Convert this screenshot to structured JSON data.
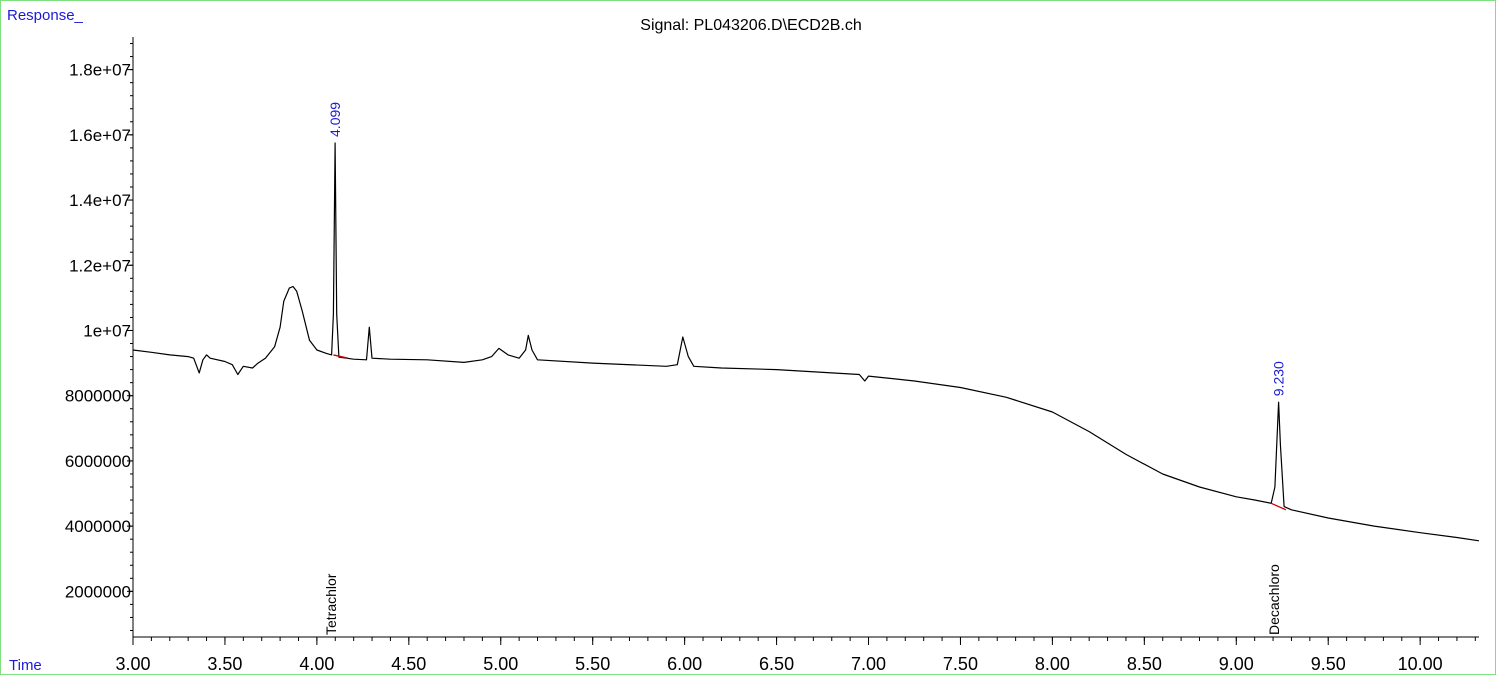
{
  "chart_data": {
    "type": "line",
    "title": "Signal: PL043206.D\\ECD2B.ch",
    "xlabel": "Time",
    "ylabel": "Response_",
    "xlim": [
      3.0,
      10.32
    ],
    "ylim": [
      600000,
      19000000
    ],
    "x_ticks": [
      3.0,
      3.5,
      4.0,
      4.5,
      5.0,
      5.5,
      6.0,
      6.5,
      7.0,
      7.5,
      8.0,
      8.5,
      9.0,
      9.5,
      10.0
    ],
    "x_tick_labels": [
      "3.00",
      "3.50",
      "4.00",
      "4.50",
      "5.00",
      "5.50",
      "6.00",
      "6.50",
      "7.00",
      "7.50",
      "8.00",
      "8.50",
      "9.00",
      "9.50",
      "10.00"
    ],
    "y_ticks": [
      2000000,
      4000000,
      6000000,
      8000000,
      10000000,
      12000000,
      14000000,
      16000000,
      18000000
    ],
    "y_tick_labels": [
      "2000000",
      "4000000",
      "6000000",
      "8000000",
      "1e+07",
      "1.2e+07",
      "1.4e+07",
      "1.6e+07",
      "1.8e+07"
    ],
    "grid": false,
    "series": [
      {
        "color": "#000000",
        "points": [
          [
            3.0,
            9400000
          ],
          [
            3.1,
            9330000
          ],
          [
            3.2,
            9250000
          ],
          [
            3.3,
            9200000
          ],
          [
            3.33,
            9150000
          ],
          [
            3.36,
            8700000
          ],
          [
            3.38,
            9100000
          ],
          [
            3.4,
            9250000
          ],
          [
            3.42,
            9150000
          ],
          [
            3.5,
            9050000
          ],
          [
            3.54,
            8950000
          ],
          [
            3.57,
            8650000
          ],
          [
            3.6,
            8900000
          ],
          [
            3.65,
            8850000
          ],
          [
            3.68,
            9000000
          ],
          [
            3.72,
            9150000
          ],
          [
            3.77,
            9500000
          ],
          [
            3.8,
            10100000
          ],
          [
            3.82,
            10900000
          ],
          [
            3.85,
            11300000
          ],
          [
            3.87,
            11350000
          ],
          [
            3.89,
            11200000
          ],
          [
            3.92,
            10600000
          ],
          [
            3.96,
            9700000
          ],
          [
            4.0,
            9400000
          ],
          [
            4.05,
            9300000
          ],
          [
            4.08,
            9250000
          ],
          [
            4.09,
            10500000
          ],
          [
            4.099,
            15750000
          ],
          [
            4.108,
            10500000
          ],
          [
            4.12,
            9180000
          ],
          [
            4.2,
            9120000
          ],
          [
            4.27,
            9100000
          ],
          [
            4.285,
            10100000
          ],
          [
            4.3,
            9150000
          ],
          [
            4.4,
            9120000
          ],
          [
            4.6,
            9100000
          ],
          [
            4.8,
            9020000
          ],
          [
            4.9,
            9100000
          ],
          [
            4.95,
            9200000
          ],
          [
            4.99,
            9450000
          ],
          [
            5.04,
            9250000
          ],
          [
            5.1,
            9150000
          ],
          [
            5.135,
            9400000
          ],
          [
            5.15,
            9850000
          ],
          [
            5.17,
            9400000
          ],
          [
            5.2,
            9100000
          ],
          [
            5.5,
            9000000
          ],
          [
            5.9,
            8900000
          ],
          [
            5.96,
            8950000
          ],
          [
            5.99,
            9800000
          ],
          [
            6.02,
            9200000
          ],
          [
            6.05,
            8900000
          ],
          [
            6.2,
            8850000
          ],
          [
            6.5,
            8800000
          ],
          [
            6.8,
            8700000
          ],
          [
            6.95,
            8650000
          ],
          [
            6.98,
            8450000
          ],
          [
            7.0,
            8600000
          ],
          [
            7.25,
            8450000
          ],
          [
            7.5,
            8250000
          ],
          [
            7.75,
            7950000
          ],
          [
            8.0,
            7500000
          ],
          [
            8.2,
            6900000
          ],
          [
            8.4,
            6200000
          ],
          [
            8.6,
            5600000
          ],
          [
            8.8,
            5200000
          ],
          [
            9.0,
            4900000
          ],
          [
            9.1,
            4800000
          ],
          [
            9.19,
            4700000
          ],
          [
            9.21,
            5200000
          ],
          [
            9.23,
            7800000
          ],
          [
            9.24,
            6500000
          ],
          [
            9.26,
            4600000
          ],
          [
            9.3,
            4500000
          ],
          [
            9.5,
            4250000
          ],
          [
            9.75,
            4000000
          ],
          [
            10.0,
            3800000
          ],
          [
            10.2,
            3650000
          ],
          [
            10.32,
            3550000
          ]
        ]
      }
    ],
    "peak_labels": [
      {
        "x": 4.099,
        "y": 15750000,
        "text": "4.099"
      },
      {
        "x": 9.23,
        "y": 7800000,
        "text": "9.230"
      }
    ],
    "baselines": [
      {
        "x1": 4.09,
        "y1": 9250000,
        "x2": 4.17,
        "y2": 9150000,
        "color": "#cc0000"
      },
      {
        "x1": 9.19,
        "y1": 4700000,
        "x2": 9.27,
        "y2": 4500000,
        "color": "#cc0000"
      }
    ],
    "compound_labels": [
      {
        "x": 4.07,
        "text": "Tetrachlor"
      },
      {
        "x": 9.2,
        "text": "Decachloro"
      }
    ],
    "colors": {
      "axis_text_label": "#1b1bd6",
      "trace": "#000000",
      "baseline": "#cc0000",
      "frame": "#7ee07e"
    }
  }
}
